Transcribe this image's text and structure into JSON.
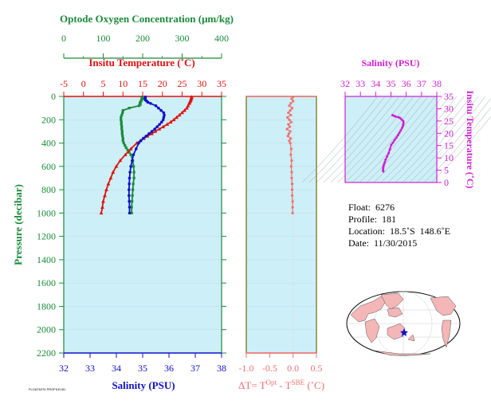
{
  "colors": {
    "oxygen": "#1a8a3a",
    "temperature": "#e01010",
    "salinity": "#1010c8",
    "dt": "#f07070",
    "ts": "#d020d0",
    "panel_bg": "#cdeff7",
    "axis_left": "#1a8a3a",
    "axis_bottom_left": "#1010c8",
    "axis_bottom_mid": "#f07070",
    "axis_dt_frame": "#6b6b00",
    "land": "#f4b6b6"
  },
  "axes": {
    "oxygen_title": "Optode Oxygen Concentration (μm/kg)",
    "oxygen_ticks": [
      "0",
      "100",
      "200",
      "300",
      "400"
    ],
    "temp_title": "Insitu Temperature (˚C)",
    "temp_ticks": [
      "-5",
      "0",
      "5",
      "10",
      "15",
      "20",
      "25",
      "30",
      "35"
    ],
    "pressure_title": "Pressure (decibar)",
    "pressure_ticks": [
      "0",
      "200",
      "400",
      "600",
      "800",
      "1000",
      "1200",
      "1400",
      "1600",
      "1800",
      "2000",
      "2200"
    ],
    "salinity_title": "Salinity (PSU)",
    "salinity_ticks": [
      "32",
      "33",
      "34",
      "35",
      "36",
      "37",
      "38"
    ],
    "dt_ticks": [
      "-1.0",
      "-0.5",
      "0.0",
      "0.5"
    ],
    "dt_label_prefix": "ΔT= T",
    "dt_label_sup1": "Opt",
    "dt_label_mid": " - T",
    "dt_label_sup2": "SBE",
    "dt_label_suffix": " (˚C)",
    "ts_sal_title": "Salinity (PSU)",
    "ts_sal_ticks": [
      "32",
      "33",
      "34",
      "35",
      "36",
      "37",
      "38"
    ],
    "ts_temp_title": "Insitu Temperature (˚C)",
    "ts_temp_ticks": [
      "0",
      "5",
      "10",
      "15",
      "20",
      "25",
      "30",
      "35"
    ]
  },
  "info": {
    "float": "Float:  6276",
    "profile": "Profile:  181",
    "location": "Location:  18.5˚S  148.6˚E",
    "date": "Date:  11/30/2015"
  },
  "tiny_caption": "FLOAT6276 PROFILE181",
  "chart_data": [
    {
      "type": "line",
      "title": "",
      "ylabel": "Pressure (decibar)",
      "ylim": [
        2200,
        0
      ],
      "series": [
        {
          "name": "Optode Oxygen Concentration (μm/kg)",
          "xlim": [
            0,
            400
          ],
          "pressure": [
            5,
            10,
            20,
            30,
            40,
            50,
            60,
            70,
            80,
            100,
            120,
            140,
            160,
            180,
            200,
            220,
            240,
            260,
            280,
            300,
            320,
            340,
            360,
            380,
            400,
            420,
            440,
            460,
            480,
            500,
            550,
            600,
            650,
            700,
            750,
            800,
            850,
            900,
            950,
            1000
          ],
          "values": [
            198,
            198,
            200,
            197,
            196,
            194,
            193,
            194,
            191,
            166,
            150,
            149,
            147,
            145,
            145,
            146,
            146,
            147,
            147,
            148,
            148,
            149,
            150,
            150,
            152,
            155,
            158,
            162,
            166,
            170,
            175,
            177,
            178,
            178,
            176,
            175,
            174,
            173,
            172,
            172
          ]
        },
        {
          "name": "Insitu Temperature (˚C)",
          "xlim": [
            -5,
            35
          ],
          "pressure": [
            5,
            10,
            20,
            30,
            40,
            50,
            60,
            80,
            100,
            120,
            140,
            160,
            180,
            200,
            220,
            240,
            260,
            280,
            300,
            320,
            340,
            360,
            380,
            400,
            450,
            500,
            550,
            600,
            650,
            700,
            750,
            800,
            850,
            900,
            950,
            1000
          ],
          "values": [
            27.4,
            27.4,
            27.3,
            27.2,
            27.1,
            26.9,
            26.8,
            26.5,
            26.2,
            25.6,
            25.0,
            24.3,
            23.6,
            22.9,
            22.1,
            21.2,
            20.2,
            19.2,
            18.2,
            17.3,
            16.2,
            15.3,
            14.4,
            13.5,
            12.0,
            10.6,
            9.3,
            8.3,
            7.5,
            6.9,
            6.3,
            5.8,
            5.4,
            5.0,
            4.8,
            4.5
          ]
        },
        {
          "name": "Salinity (PSU)",
          "xlim": [
            32,
            38
          ],
          "pressure": [
            5,
            10,
            20,
            30,
            40,
            50,
            60,
            80,
            100,
            120,
            140,
            160,
            180,
            200,
            220,
            240,
            260,
            280,
            300,
            320,
            340,
            360,
            380,
            400,
            450,
            500,
            550,
            600,
            650,
            700,
            750,
            800,
            850,
            900,
            950,
            1000
          ],
          "values": [
            35.1,
            35.1,
            35.1,
            35.1,
            35.15,
            35.2,
            35.3,
            35.5,
            35.6,
            35.7,
            35.8,
            35.82,
            35.8,
            35.78,
            35.72,
            35.64,
            35.55,
            35.46,
            35.35,
            35.24,
            35.13,
            35.02,
            34.93,
            34.85,
            34.75,
            34.65,
            34.6,
            34.55,
            34.52,
            34.5,
            34.49,
            34.48,
            34.48,
            34.49,
            34.5,
            34.5
          ]
        }
      ]
    },
    {
      "type": "line",
      "title": "",
      "xlabel": "ΔT= TOpt - TSBE (˚C)",
      "xlim": [
        -1.0,
        0.5
      ],
      "ylim": [
        2200,
        0
      ],
      "series": [
        {
          "name": "ΔT",
          "pressure": [
            5,
            20,
            40,
            60,
            80,
            100,
            120,
            140,
            160,
            180,
            200,
            220,
            240,
            260,
            280,
            300,
            320,
            340,
            360,
            380,
            400,
            450,
            500,
            550,
            600,
            650,
            700,
            750,
            800,
            850,
            900,
            950,
            1000
          ],
          "values": [
            0.0,
            -0.03,
            0.0,
            -0.05,
            -0.08,
            -0.02,
            -0.06,
            -0.1,
            -0.05,
            -0.12,
            -0.08,
            -0.04,
            -0.1,
            -0.07,
            -0.13,
            -0.06,
            -0.09,
            -0.11,
            -0.05,
            -0.08,
            -0.06,
            -0.04,
            -0.05,
            -0.03,
            -0.04,
            -0.03,
            -0.03,
            -0.02,
            -0.02,
            -0.02,
            -0.01,
            -0.01,
            -0.01
          ]
        }
      ]
    },
    {
      "type": "scatter",
      "title": "",
      "xlabel": "Salinity (PSU)",
      "ylabel": "Insitu Temperature (˚C)",
      "xlim": [
        32,
        38
      ],
      "ylim": [
        0,
        35
      ],
      "series": [
        {
          "name": "T-S",
          "x": [
            34.5,
            34.48,
            34.49,
            34.5,
            34.52,
            34.55,
            34.6,
            34.65,
            34.75,
            34.85,
            34.93,
            35.02,
            35.13,
            35.24,
            35.35,
            35.46,
            35.55,
            35.64,
            35.72,
            35.78,
            35.8,
            35.82,
            35.8,
            35.7,
            35.6,
            35.5,
            35.3,
            35.2,
            35.1
          ],
          "y": [
            4.5,
            5.0,
            5.8,
            6.3,
            6.9,
            7.5,
            8.3,
            9.3,
            10.6,
            12.0,
            13.5,
            15.3,
            16.2,
            17.3,
            18.2,
            19.2,
            20.2,
            21.2,
            22.1,
            22.9,
            23.6,
            24.3,
            25.0,
            25.6,
            26.2,
            26.5,
            26.8,
            27.1,
            27.4
          ]
        }
      ]
    }
  ]
}
